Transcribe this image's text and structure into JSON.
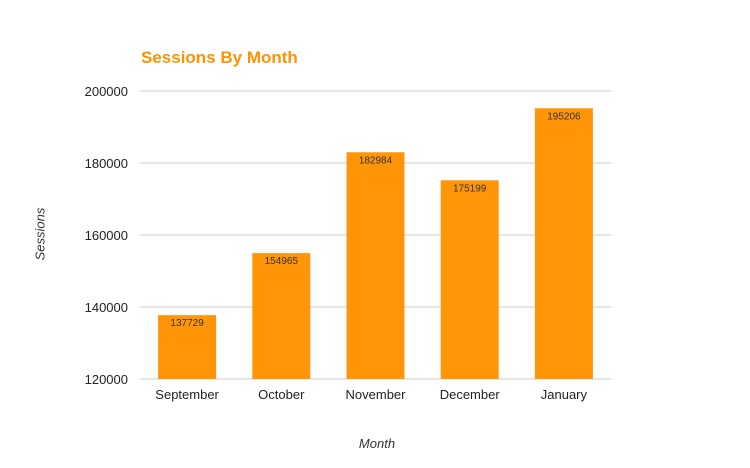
{
  "chart_data": {
    "type": "bar",
    "title": "Sessions By Month",
    "xlabel": "Month",
    "ylabel": "Sessions",
    "categories": [
      "September",
      "October",
      "November",
      "December",
      "January"
    ],
    "values": [
      137729,
      154965,
      182984,
      175199,
      195206
    ],
    "ylim": [
      120000,
      200000
    ],
    "yticks": [
      "120000",
      "140000",
      "160000",
      "180000",
      "200000"
    ],
    "grid": true,
    "legend": "none",
    "colors": {
      "bar": "#ff9507",
      "title": "#ff9200",
      "grid": "#cccccc"
    }
  }
}
